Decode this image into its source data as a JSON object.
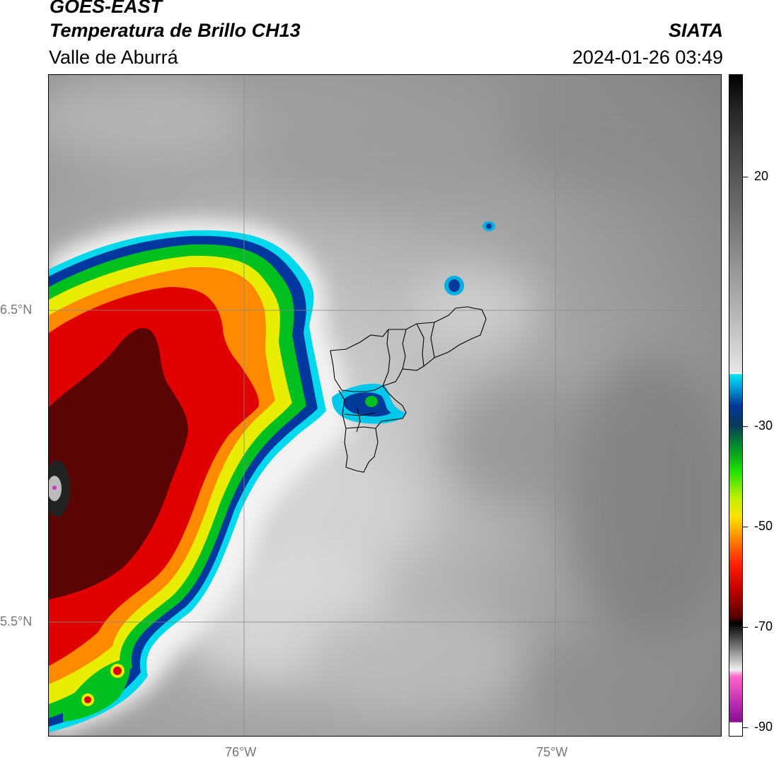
{
  "header": {
    "satellite": "GOES-EAST",
    "product": "Temperatura de Brillo CH13",
    "region": "Valle de Aburrá",
    "org": "SIATA",
    "datetime": "2024-01-26 03:49"
  },
  "map": {
    "lat_labels": [
      "6.5°N",
      "5.5°N"
    ],
    "lon_labels": [
      "76°W",
      "75°W"
    ],
    "background_color": "#888888"
  },
  "colorbar": {
    "ticks": [
      "20",
      "-30",
      "-50",
      "-70",
      "-90"
    ],
    "colors": {
      "cold_cyan": "#00e5ee",
      "blue": "#003a9a",
      "green": "#00c000",
      "yellow": "#f0f000",
      "orange": "#ff8c00",
      "red": "#e00000",
      "dark_red": "#5a0000",
      "magenta": "#cc33cc"
    }
  }
}
